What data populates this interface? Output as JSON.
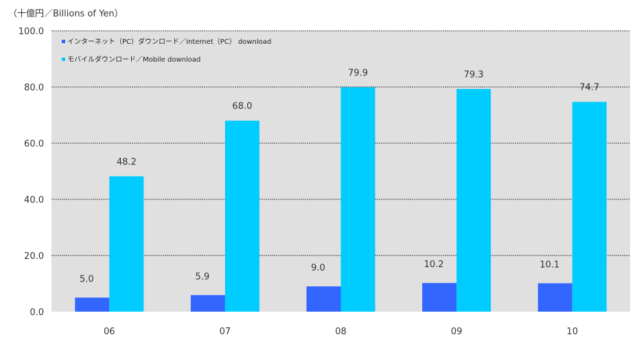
{
  "chart_data": {
    "type": "bar",
    "unit_label": "（十億円／Billions of Yen）",
    "categories": [
      "06",
      "07",
      "08",
      "09",
      "10"
    ],
    "series": [
      {
        "name": "インターネット（PC）ダウンロード／Internet（PC） download",
        "values": [
          5.0,
          5.9,
          9.0,
          10.2,
          10.1
        ],
        "labels": [
          "5.0",
          "5.9",
          "9.0",
          "10.2",
          "10.1"
        ],
        "color": "#3366FF"
      },
      {
        "name": "モバイルダウンロード／Mobile download",
        "values": [
          48.2,
          68.0,
          79.9,
          79.3,
          74.7
        ],
        "labels": [
          "48.2",
          "68.0",
          "79.9",
          "79.3",
          "74.7"
        ],
        "color": "#00CCFF"
      }
    ],
    "yticks": [
      "0.0",
      "20.0",
      "40.0",
      "60.0",
      "80.0",
      "100.0"
    ],
    "ylim": [
      0,
      100
    ],
    "grid": true,
    "legend_position": "top-left",
    "plot_background": "#E0E0E0"
  }
}
